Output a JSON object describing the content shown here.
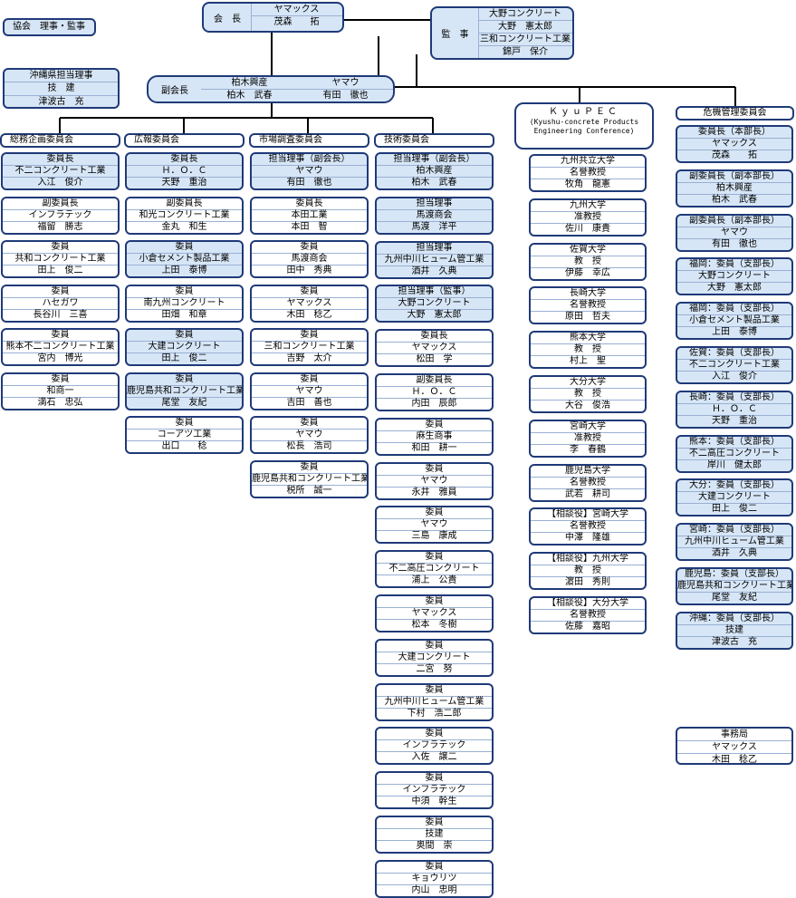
{
  "top_left_label": "協会　理事・監事",
  "chairman": {
    "role": "会　長",
    "company": "ヤマックス",
    "person": "茂森　　拓"
  },
  "auditor": {
    "role": "監　事",
    "lines": [
      "大野コンクリート",
      "大野　憲太郎",
      "三和コンクリート工業",
      "錦戸　保介"
    ]
  },
  "okinawa": {
    "lines": [
      "沖縄県担当理事",
      "技　建",
      "津波古　充"
    ]
  },
  "vice": {
    "role": "副会長",
    "left": [
      "柏木興産",
      "柏木　武春"
    ],
    "right": [
      "ヤマウ",
      "有田　徹也"
    ]
  },
  "kyupec": {
    "title": "ＫｙｕＰＥＣ",
    "sub1": "(Kyushu-concrete Products",
    "sub2": "Engineering Conference)"
  },
  "committees": {
    "soumu": {
      "title": "総務企画委員会",
      "boxes": [
        [
          "委員長",
          "不二コンクリート工業",
          "入江　俊介"
        ],
        [
          "副委員長",
          "インフラテック",
          "福留　勝志"
        ],
        [
          "委員",
          "共和コンクリート工業",
          "田上　俊二"
        ],
        [
          "委員",
          "ハセガワ",
          "長谷川　三喜"
        ],
        [
          "委員",
          "熊本不二コンクリート工業",
          "宮内　博光"
        ],
        [
          "委員",
          "和商一",
          "満石　忠弘"
        ]
      ]
    },
    "kouhou": {
      "title": "広報委員会",
      "boxes": [
        [
          "委員長",
          "Ｈ．Ｏ．Ｃ",
          "天野　重治"
        ],
        [
          "副委員長",
          "和光コンクリート工業",
          "金丸　和生"
        ],
        [
          "委員",
          "小倉セメント製品工業",
          "上田　泰博"
        ],
        [
          "委員",
          "南九州コンクリート",
          "田畑　和章"
        ],
        [
          "委員",
          "大建コンクリート",
          "田上　俊二"
        ],
        [
          "委員",
          "鹿児島共和コンクリート工業",
          "尾堂　友紀"
        ],
        [
          "委員",
          "コーアツ工業",
          "出口　　稔"
        ]
      ]
    },
    "shijou": {
      "title": "市場調査委員会",
      "boxes": [
        [
          "担当理事（副会長）",
          "ヤマウ",
          "有田　徹也"
        ],
        [
          "委員長",
          "本田工業",
          "本田　智"
        ],
        [
          "委員",
          "馬渡商会",
          "田中　秀典"
        ],
        [
          "委員",
          "ヤマックス",
          "木田　稔乙"
        ],
        [
          "委員",
          "三和コンクリート工業",
          "吉野　太介"
        ],
        [
          "委員",
          "ヤマウ",
          "吉田　善也"
        ],
        [
          "委員",
          "ヤマウ",
          "松長　浩司"
        ],
        [
          "委員",
          "鹿児島共和コンクリート工業",
          "税所　誠一"
        ]
      ]
    },
    "gijutsu": {
      "title": "技術委員会",
      "boxes": [
        [
          "担当理事（副会長）",
          "柏木興産",
          "柏木　武春"
        ],
        [
          "担当理事",
          "馬渡商会",
          "馬渡　洋平"
        ],
        [
          "担当理事",
          "九州中川ヒューム管工業",
          "酒井　久典"
        ],
        [
          "担当理事（監事）",
          "大野コンクリート",
          "大野　憲太郎"
        ],
        [
          "委員長",
          "ヤマックス",
          "松田　学"
        ],
        [
          "副委員長",
          "Ｈ．Ｏ．Ｃ",
          "内田　辰郎"
        ],
        [
          "委員",
          "麻生商事",
          "和田　耕一"
        ],
        [
          "委員",
          "ヤマウ",
          "永井　雅員"
        ],
        [
          "委員",
          "ヤマウ",
          "三島　康成"
        ],
        [
          "委員",
          "不二高圧コンクリート",
          "浦上　公貴"
        ],
        [
          "委員",
          "ヤマックス",
          "松本　冬樹"
        ],
        [
          "委員",
          "大建コンクリート",
          "二宮　努"
        ],
        [
          "委員",
          "九州中川ヒューム管工業",
          "下村　浩二郎"
        ],
        [
          "委員",
          "インフラテック",
          "入佐　譲二"
        ],
        [
          "委員",
          "インフラテック",
          "中須　幹生"
        ],
        [
          "委員",
          "技建",
          "奥間　崇"
        ],
        [
          "委員",
          "キョウリツ",
          "内山　忠明"
        ]
      ]
    },
    "kiki": {
      "title": "危機管理委員会",
      "boxes": [
        [
          "委員長（本部長）",
          "ヤマックス",
          "茂森　　拓"
        ],
        [
          "副委員長（副本部長）",
          "柏木興産",
          "柏木　武春"
        ],
        [
          "副委員長（副本部長）",
          "ヤマウ",
          "有田　徹也"
        ],
        [
          "福岡：委員（支部長）",
          "大野コンクリート",
          "大野　憲太郎"
        ],
        [
          "福岡：委員（支部長）",
          "小倉セメント製品工業",
          "上田　泰博"
        ],
        [
          "佐賀：委員（支部長）",
          "不二コンクリート工業",
          "入江　俊介"
        ],
        [
          "長崎：委員（支部長）",
          "Ｈ．Ｏ．Ｃ",
          "天野　重治"
        ],
        [
          "熊本：委員（支部長）",
          "不二高圧コンクリート",
          "岸川　健太郎"
        ],
        [
          "大分：委員（支部長）",
          "大建コンクリート",
          "田上　俊二"
        ],
        [
          "宮崎：委員（支部長）",
          "九州中川ヒューム管工業",
          "酒井　久典"
        ],
        [
          "鹿児島：委員（支部長）",
          "鹿児島共和コンクリート工業",
          "尾堂　友紀"
        ],
        [
          "沖縄：委員（支部長）",
          "技建",
          "津波古　充"
        ]
      ]
    }
  },
  "universities": [
    [
      "九州共立大学",
      "名誉教授",
      "牧角　龍憲"
    ],
    [
      "九州大学",
      "准教授",
      "佐川　康貴"
    ],
    [
      "佐賀大学",
      "教　授",
      "伊藤　幸広"
    ],
    [
      "長崎大学",
      "名誉教授",
      "原田　哲夫"
    ],
    [
      "熊本大学",
      "教　授",
      "村上　聖"
    ],
    [
      "大分大学",
      "教　授",
      "大谷　俊浩"
    ],
    [
      "宮崎大学",
      "准教授",
      "李　春鶴"
    ],
    [
      "鹿児島大学",
      "名誉教授",
      "武若　耕司"
    ],
    [
      "【相談役】宮崎大学",
      "名誉教授",
      "中澤　隆雄"
    ],
    [
      "【相談役】九州大学",
      "教　授",
      "濵田　秀則"
    ],
    [
      "【相談役】大分大学",
      "名誉教授",
      "佐藤　嘉昭"
    ]
  ],
  "jimukyoku": [
    "事務局",
    "ヤマックス",
    "木田　稔乙"
  ]
}
